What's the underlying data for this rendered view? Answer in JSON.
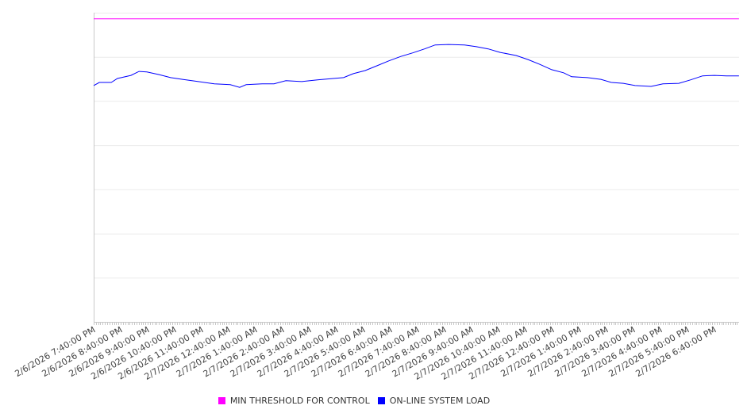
{
  "chart_data": {
    "type": "line",
    "title": "",
    "xlabel": "",
    "ylabel": "",
    "y_tick_labels_shown": false,
    "grid": true,
    "legend_placement": "bottom-center",
    "ylim": [
      0,
      7
    ],
    "xlim_hours_from_start": [
      0,
      23.91
    ],
    "x_tick_labels": [
      "2/6/2026 7:40:00 PM",
      "2/6/2026 8:40:00 PM",
      "2/6/2026 9:40:00 PM",
      "2/6/2026 10:40:00 PM",
      "2/6/2026 11:40:00 PM",
      "2/7/2026 12:40:00 AM",
      "2/7/2026 1:40:00 AM",
      "2/7/2026 2:40:00 AM",
      "2/7/2026 3:40:00 AM",
      "2/7/2026 4:40:00 AM",
      "2/7/2026 5:40:00 AM",
      "2/7/2026 6:40:00 AM",
      "2/7/2026 7:40:00 AM",
      "2/7/2026 8:40:00 AM",
      "2/7/2026 9:40:00 AM",
      "2/7/2026 10:40:00 AM",
      "2/7/2026 11:40:00 AM",
      "2/7/2026 12:40:00 PM",
      "2/7/2026 1:40:00 PM",
      "2/7/2026 2:40:00 PM",
      "2/7/2026 3:40:00 PM",
      "2/7/2026 4:40:00 PM",
      "2/7/2026 5:40:00 PM",
      "2/7/2026 6:40:00 PM"
    ],
    "series": [
      {
        "name": "MIN THRESHOLD FOR CONTROL",
        "color": "#ff00ff",
        "x": [
          0,
          23.91
        ],
        "values": [
          6.86,
          6.86
        ]
      },
      {
        "name": "ON-LINE SYSTEM LOAD",
        "color": "#0000ff",
        "x": [
          0,
          0.21,
          0.65,
          0.88,
          1.38,
          1.68,
          1.97,
          2.41,
          2.85,
          3.29,
          3.88,
          4.47,
          5.06,
          5.41,
          5.65,
          6.24,
          6.68,
          7.12,
          7.71,
          8.29,
          8.88,
          9.26,
          9.62,
          10.06,
          10.5,
          10.94,
          11.38,
          11.82,
          12.26,
          12.65,
          13.15,
          13.74,
          14.18,
          14.62,
          15.06,
          15.65,
          16.09,
          16.53,
          16.97,
          17.41,
          17.71,
          18.29,
          18.79,
          19.18,
          19.62,
          20.06,
          20.65,
          21.09,
          21.68,
          22.12,
          22.56,
          23,
          23.44,
          23.91
        ],
        "values": [
          5.35,
          5.42,
          5.42,
          5.51,
          5.58,
          5.67,
          5.66,
          5.6,
          5.53,
          5.49,
          5.44,
          5.39,
          5.37,
          5.31,
          5.37,
          5.39,
          5.39,
          5.46,
          5.44,
          5.48,
          5.51,
          5.53,
          5.62,
          5.69,
          5.8,
          5.91,
          6.01,
          6.09,
          6.18,
          6.27,
          6.28,
          6.27,
          6.23,
          6.18,
          6.1,
          6.03,
          5.94,
          5.83,
          5.71,
          5.64,
          5.55,
          5.53,
          5.49,
          5.42,
          5.4,
          5.35,
          5.33,
          5.39,
          5.4,
          5.48,
          5.57,
          5.58,
          5.57,
          5.57
        ]
      }
    ]
  }
}
